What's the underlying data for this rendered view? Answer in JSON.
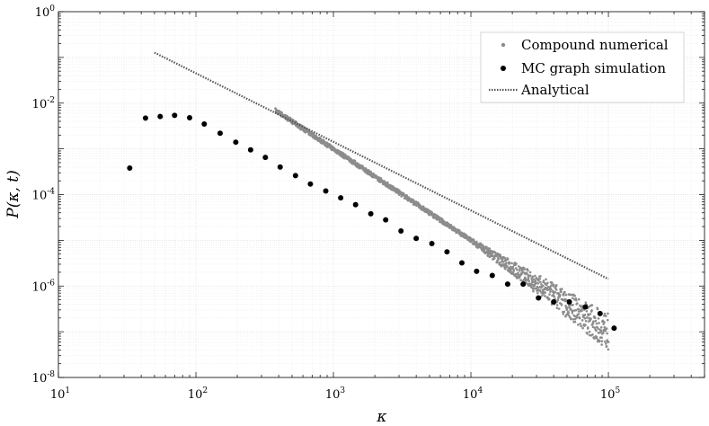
{
  "chart_data": {
    "type": "scatter",
    "xlabel": "κ",
    "ylabel": "P(κ, t)",
    "xscale": "log",
    "yscale": "log",
    "xlim": [
      10,
      500000
    ],
    "ylim": [
      1e-08,
      1
    ],
    "grid": true,
    "legend_position": "top-right",
    "x_tick_labels": [
      {
        "base": "10",
        "exp": "1"
      },
      {
        "base": "10",
        "exp": "2"
      },
      {
        "base": "10",
        "exp": "3"
      },
      {
        "base": "10",
        "exp": "4"
      },
      {
        "base": "10",
        "exp": "5"
      }
    ],
    "y_tick_labels": [
      {
        "base": "10",
        "exp": "0"
      },
      {
        "base": "10",
        "exp": "-2"
      },
      {
        "base": "10",
        "exp": "-4"
      },
      {
        "base": "10",
        "exp": "-6"
      },
      {
        "base": "10",
        "exp": "-8"
      }
    ],
    "series": [
      {
        "name": "Compound numerical",
        "style": "small gray points",
        "color": "#8c8c8c",
        "x_range": [
          380,
          100000
        ],
        "power_law": {
          "coefficient": 1000,
          "exponent": -2.0
        },
        "noise_grows_above": 10000
      },
      {
        "name": "MC graph simulation",
        "style": "black dots",
        "color": "#000000",
        "points": [
          [
            33,
            0.00038
          ],
          [
            43,
            0.0047
          ],
          [
            55,
            0.0051
          ],
          [
            70,
            0.0054
          ],
          [
            90,
            0.0048
          ],
          [
            115,
            0.0035
          ],
          [
            150,
            0.0022
          ],
          [
            195,
            0.0014
          ],
          [
            250,
            0.00095
          ],
          [
            320,
            0.00065
          ],
          [
            410,
            0.0004
          ],
          [
            530,
            0.00026
          ],
          [
            680,
            0.00017
          ],
          [
            880,
            0.00012
          ],
          [
            1130,
            8.5e-05
          ],
          [
            1450,
            6e-05
          ],
          [
            1870,
            3.8e-05
          ],
          [
            2400,
            2.8e-05
          ],
          [
            3100,
            1.6e-05
          ],
          [
            4000,
            1.1e-05
          ],
          [
            5200,
            8.5e-06
          ],
          [
            6700,
            5.6e-06
          ],
          [
            8600,
            3.2e-06
          ],
          [
            11000,
            2.1e-06
          ],
          [
            14300,
            1.7e-06
          ],
          [
            18500,
            1.1e-06
          ],
          [
            24000,
            1.1e-06
          ],
          [
            31000,
            5.5e-07
          ],
          [
            40000,
            4.5e-07
          ],
          [
            52000,
            4.5e-07
          ],
          [
            68000,
            3.5e-07
          ],
          [
            87000,
            2.5e-07
          ],
          [
            110000,
            1.2e-07
          ]
        ]
      },
      {
        "name": "Analytical",
        "style": "dotted line",
        "color": "#555555",
        "x_range": [
          50,
          100000
        ],
        "power_law": {
          "coefficient": 45,
          "exponent": -1.5
        }
      }
    ]
  }
}
